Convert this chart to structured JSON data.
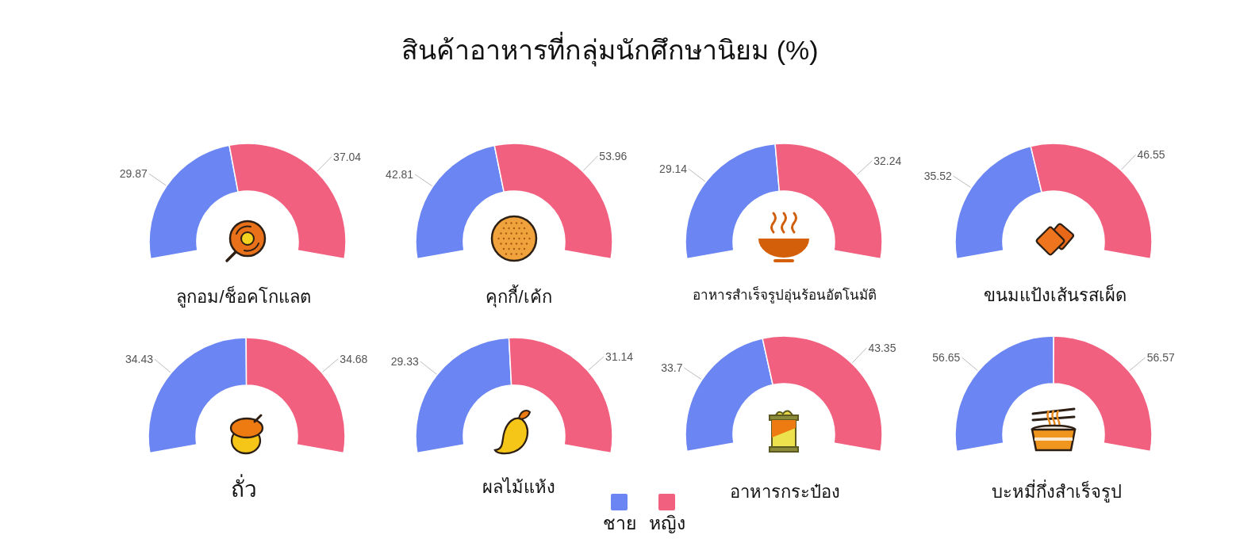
{
  "chart_data": [
    {
      "type": "other",
      "title": "สินค้าอาหารที่กลุ่มนักศึกษานิยม (%)"
    },
    {
      "type": "donut",
      "title": "ลูกอม/ช็อคโกแลต",
      "values": [
        29.87,
        37.04
      ],
      "colors": [
        "#6b86f3",
        "#f1607f"
      ],
      "data_labels": true
    },
    {
      "type": "donut",
      "title": "คุกกี้/เค้ก",
      "values": [
        42.81,
        53.96
      ],
      "colors": [
        "#6b86f3",
        "#f1607f"
      ],
      "data_labels": true
    },
    {
      "type": "donut",
      "title": "อาหารสำเร็จรูปอุ่นร้อนอัตโนมัติ",
      "values": [
        29.14,
        32.24
      ],
      "colors": [
        "#6b86f3",
        "#f1607f"
      ],
      "data_labels": true
    },
    {
      "type": "donut",
      "title": "ขนมแป้งเส้นรสเผ็ด",
      "values": [
        35.52,
        46.55
      ],
      "colors": [
        "#6b86f3",
        "#f1607f"
      ],
      "data_labels": true
    },
    {
      "type": "donut",
      "title": "ถั่ว",
      "values": [
        34.43,
        34.68
      ],
      "colors": [
        "#6b86f3",
        "#f1607f"
      ],
      "data_labels": true
    },
    {
      "type": "donut",
      "title": "ผลไม้แห้ง",
      "categories": [
        "ชาย",
        "หญิง"
      ],
      "values": [
        29.33,
        31.14
      ],
      "colors": [
        "#6b86f3",
        "#f1607f"
      ],
      "data_labels": true,
      "legend": "bottom right"
    },
    {
      "type": "donut",
      "title": "อาหารกระป๋อง",
      "values": [
        33.7,
        43.35
      ],
      "colors": [
        "#6b86f3",
        "#f1607f"
      ],
      "data_labels": true
    },
    {
      "type": "donut",
      "title": "บะหมี่กึ่งสำเร็จรูป",
      "values": [
        56.65,
        56.57
      ],
      "colors": [
        "#6b86f3",
        "#f1607f"
      ],
      "data_labels": true
    }
  ]
}
